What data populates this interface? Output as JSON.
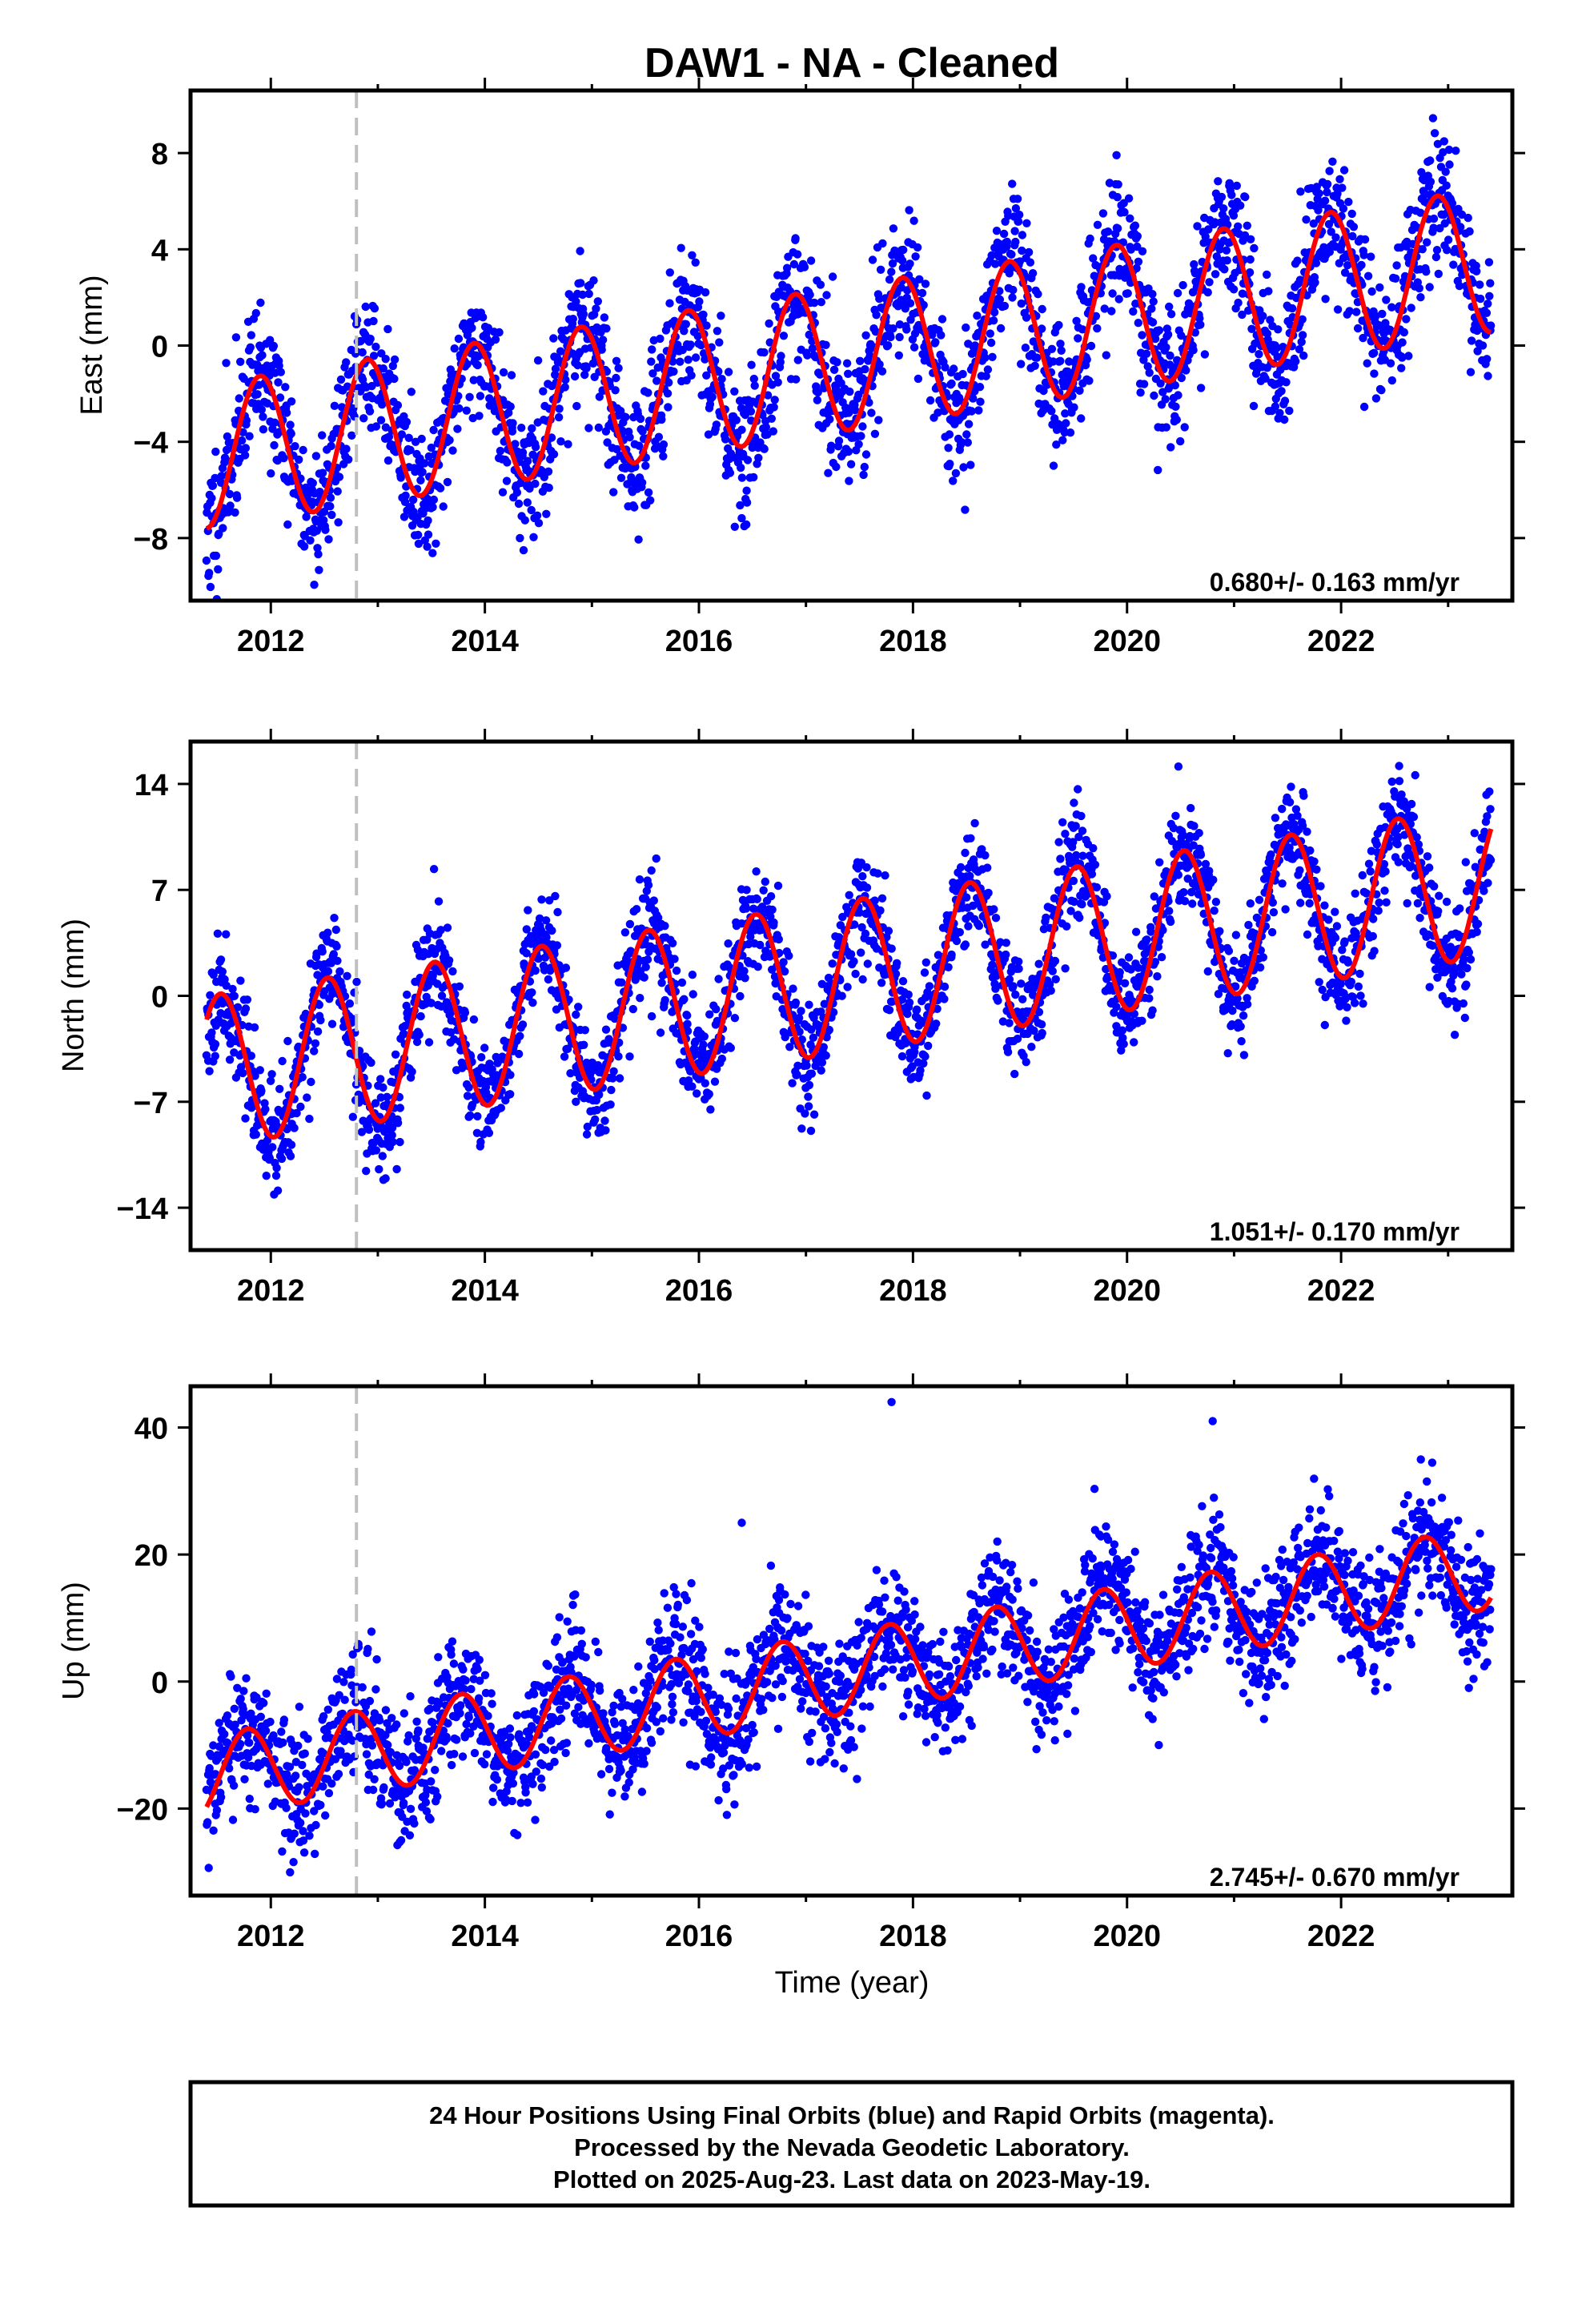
{
  "title": "DAW1  - NA - Cleaned",
  "colors": {
    "points": "#0000ff",
    "fit": "#ff0000",
    "dashed_line": "#bfbfbf",
    "frame": "#000000"
  },
  "chart_data": [
    {
      "type": "scatter",
      "ylabel": "East (mm)",
      "xlabel": "",
      "xlim": [
        2011.25,
        2023.6
      ],
      "ylim": [
        -10.6,
        10.6
      ],
      "xticks": [
        2012,
        2014,
        2016,
        2018,
        2020,
        2022
      ],
      "yticks": [
        -8,
        -4,
        0,
        4,
        8
      ],
      "ytick_labels": [
        "−8",
        "−4",
        "0",
        "4",
        "8"
      ],
      "rate_label": "0.680+/- 0.163 mm/yr",
      "offset_line_x": 2012.8,
      "series": [
        {
          "kind": "points",
          "x_range": [
            2011.4,
            2023.4
          ],
          "trend": {
            "start_value": -4.6,
            "rate": 0.68
          },
          "annual_amplitude": 3.0,
          "annual_peak_phase": 0.9,
          "scatter": 1.4,
          "sample_points": [
            {
              "x": 2011.9,
              "y": -1.0
            },
            {
              "x": 2012.35,
              "y": -6.1
            },
            {
              "x": 2012.9,
              "y": -0.6
            },
            {
              "x": 2013.4,
              "y": -5.6
            },
            {
              "x": 2013.9,
              "y": 0.1
            },
            {
              "x": 2014.4,
              "y": -4.8
            },
            {
              "x": 2014.9,
              "y": 0.7
            },
            {
              "x": 2015.4,
              "y": -4.1
            },
            {
              "x": 2015.9,
              "y": 1.4
            },
            {
              "x": 2016.4,
              "y": -3.5
            },
            {
              "x": 2016.9,
              "y": 2.0
            },
            {
              "x": 2017.4,
              "y": -2.8
            },
            {
              "x": 2017.9,
              "y": 2.7
            },
            {
              "x": 2018.4,
              "y": -2.2
            },
            {
              "x": 2018.9,
              "y": 3.4
            },
            {
              "x": 2019.4,
              "y": -1.5
            },
            {
              "x": 2019.9,
              "y": 4.1
            },
            {
              "x": 2020.4,
              "y": -0.8
            },
            {
              "x": 2020.9,
              "y": 4.8
            },
            {
              "x": 2021.4,
              "y": -0.1
            },
            {
              "x": 2021.9,
              "y": 5.5
            },
            {
              "x": 2022.4,
              "y": 0.5
            },
            {
              "x": 2022.9,
              "y": 6.2
            }
          ]
        },
        {
          "kind": "fit_curve",
          "type": "line"
        }
      ]
    },
    {
      "type": "scatter",
      "ylabel": "North (mm)",
      "xlabel": "",
      "xlim": [
        2011.25,
        2023.6
      ],
      "ylim": [
        -16.8,
        16.8
      ],
      "xticks": [
        2012,
        2014,
        2016,
        2018,
        2020,
        2022
      ],
      "yticks": [
        -14,
        -7,
        0,
        7,
        14
      ],
      "ytick_labels": [
        "−14",
        "−7",
        "0",
        "7",
        "14"
      ],
      "rate_label": "1.051+/- 0.170 mm/yr",
      "offset_line_x": 2012.8,
      "series": [
        {
          "kind": "points",
          "x_range": [
            2011.4,
            2023.4
          ],
          "trend": {
            "start_value": -5.0,
            "rate": 1.051
          },
          "annual_amplitude": 5.0,
          "annual_peak_phase": 0.53,
          "scatter": 1.8,
          "sample_points": [
            {
              "x": 2011.55,
              "y": -0.5
            },
            {
              "x": 2011.9,
              "y": -10.0
            },
            {
              "x": 2012.5,
              "y": 0.3
            },
            {
              "x": 2012.85,
              "y": -9.0
            },
            {
              "x": 2013.5,
              "y": 1.4
            },
            {
              "x": 2013.85,
              "y": -8.0
            },
            {
              "x": 2014.5,
              "y": 2.5
            },
            {
              "x": 2014.85,
              "y": -7.0
            },
            {
              "x": 2015.5,
              "y": 3.4
            },
            {
              "x": 2015.9,
              "y": -6.0
            },
            {
              "x": 2016.5,
              "y": 4.5
            },
            {
              "x": 2016.9,
              "y": -5.0
            },
            {
              "x": 2017.5,
              "y": 5.5
            },
            {
              "x": 2017.9,
              "y": -4.0
            },
            {
              "x": 2018.5,
              "y": 6.5
            },
            {
              "x": 2018.9,
              "y": -3.0
            },
            {
              "x": 2019.5,
              "y": 7.6
            },
            {
              "x": 2019.9,
              "y": -2.0
            },
            {
              "x": 2020.5,
              "y": 8.6
            },
            {
              "x": 2020.9,
              "y": -1.0
            },
            {
              "x": 2021.5,
              "y": 9.6
            },
            {
              "x": 2021.9,
              "y": 0.2
            },
            {
              "x": 2022.5,
              "y": 10.8
            },
            {
              "x": 2022.9,
              "y": 1.2
            },
            {
              "x": 2023.35,
              "y": 8.5
            }
          ]
        },
        {
          "kind": "fit_curve",
          "type": "line"
        }
      ]
    },
    {
      "type": "scatter",
      "ylabel": "Up (mm)",
      "xlabel": "Time (year)",
      "xlim": [
        2011.25,
        2023.6
      ],
      "ylim": [
        -33.7,
        46.5
      ],
      "xticks": [
        2012,
        2014,
        2016,
        2018,
        2020,
        2022
      ],
      "yticks": [
        -20,
        0,
        20,
        40
      ],
      "ytick_labels": [
        "−20",
        "0",
        "20",
        "40"
      ],
      "rate_label": "2.745+/- 0.670 mm/yr",
      "offset_line_x": 2012.8,
      "series": [
        {
          "kind": "points",
          "x_range": [
            2011.4,
            2023.4
          ],
          "trend": {
            "start_value": -15.0,
            "rate": 2.745
          },
          "annual_amplitude": 6.5,
          "annual_peak_phase": 0.78,
          "scatter": 5.0,
          "sample_points": [
            {
              "x": 2011.75,
              "y": -8.0
            },
            {
              "x": 2012.25,
              "y": -19.0
            },
            {
              "x": 2012.75,
              "y": -5.0
            },
            {
              "x": 2013.25,
              "y": -17.0
            },
            {
              "x": 2013.75,
              "y": -4.5
            },
            {
              "x": 2014.25,
              "y": -15.0
            },
            {
              "x": 2014.75,
              "y": -2.0
            },
            {
              "x": 2015.25,
              "y": -12.0
            },
            {
              "x": 2015.75,
              "y": 1.0
            },
            {
              "x": 2016.25,
              "y": -9.5
            },
            {
              "x": 2016.75,
              "y": 3.5
            },
            {
              "x": 2017.25,
              "y": -6.5
            },
            {
              "x": 2017.75,
              "y": 6.5
            },
            {
              "x": 2018.25,
              "y": -4.0
            },
            {
              "x": 2018.75,
              "y": 9.5
            },
            {
              "x": 2019.25,
              "y": -1.0
            },
            {
              "x": 2019.75,
              "y": 12.0
            },
            {
              "x": 2020.25,
              "y": 1.5
            },
            {
              "x": 2020.75,
              "y": 15.0
            },
            {
              "x": 2021.25,
              "y": 4.5
            },
            {
              "x": 2021.75,
              "y": 17.5
            },
            {
              "x": 2022.25,
              "y": 7.0
            },
            {
              "x": 2022.75,
              "y": 20.5
            },
            {
              "x": 2023.25,
              "y": 10.0
            },
            {
              "x": 2017.8,
              "y": 44.0
            },
            {
              "x": 2020.8,
              "y": 41.0
            },
            {
              "x": 2016.4,
              "y": 25.0
            }
          ]
        },
        {
          "kind": "fit_curve",
          "type": "line"
        }
      ]
    }
  ],
  "footer": {
    "line1": "24 Hour Positions Using Final Orbits (blue) and Rapid Orbits (magenta).",
    "line2": "Processed by the Nevada Geodetic Laboratory.",
    "line3": "Plotted on 2025-Aug-23. Last data on 2023-May-19."
  }
}
